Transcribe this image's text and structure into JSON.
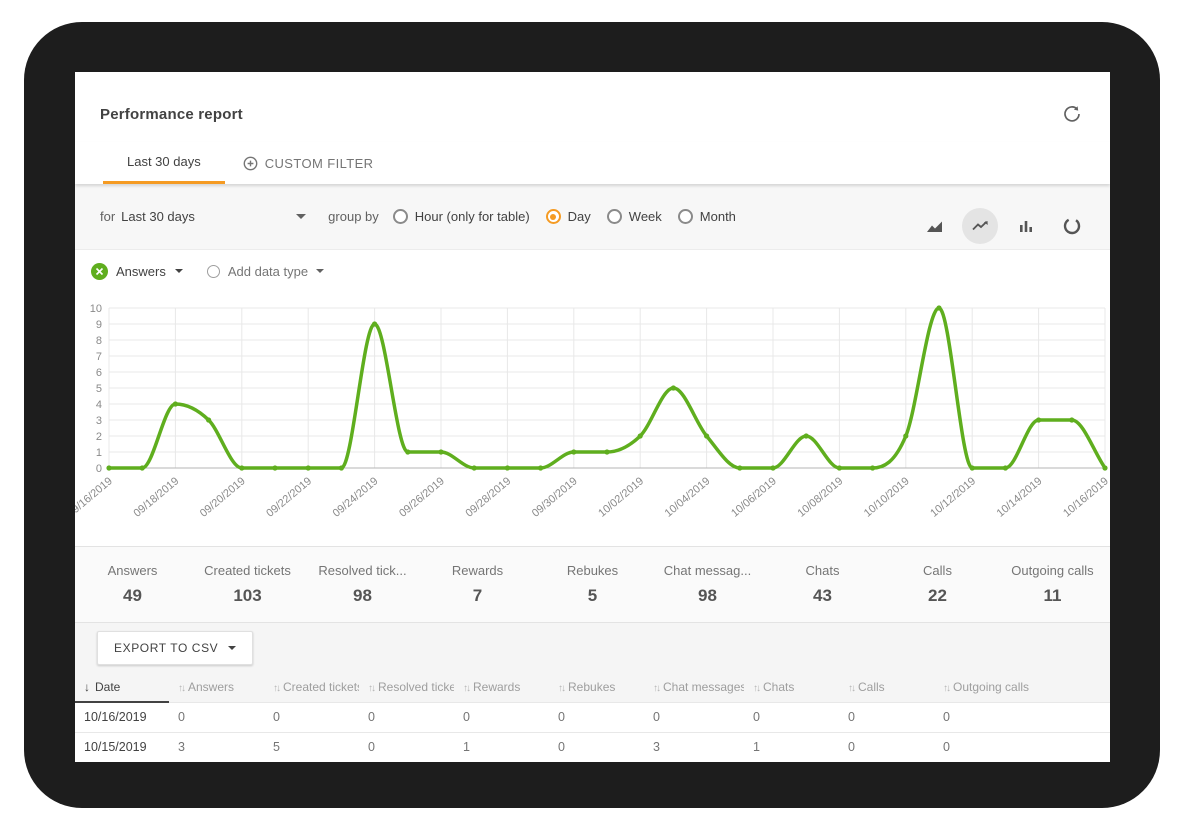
{
  "header": {
    "title": "Performance report"
  },
  "tabs": [
    {
      "label": "Last 30 days",
      "active": true
    },
    {
      "label": "CUSTOM FILTER",
      "active": false
    }
  ],
  "filter": {
    "for_label": "for",
    "range_value": "Last 30 days",
    "group_by_label": "group by",
    "group_options": [
      {
        "label": "Hour (only for table)",
        "selected": false
      },
      {
        "label": "Day",
        "selected": true
      },
      {
        "label": "Week",
        "selected": false
      },
      {
        "label": "Month",
        "selected": false
      }
    ],
    "chart_types": [
      "area-chart",
      "line-chart",
      "bar-chart",
      "donut-chart"
    ],
    "selected_chart_type": "line-chart"
  },
  "series_selector": {
    "series_label": "Answers",
    "add_label": "Add data type"
  },
  "chart_data": {
    "type": "line",
    "series_name": "Answers",
    "x": [
      "09/16/2019",
      "09/17/2019",
      "09/18/2019",
      "09/19/2019",
      "09/20/2019",
      "09/21/2019",
      "09/22/2019",
      "09/23/2019",
      "09/24/2019",
      "09/25/2019",
      "09/26/2019",
      "09/27/2019",
      "09/28/2019",
      "09/29/2019",
      "09/30/2019",
      "10/01/2019",
      "10/02/2019",
      "10/03/2019",
      "10/04/2019",
      "10/05/2019",
      "10/06/2019",
      "10/07/2019",
      "10/08/2019",
      "10/09/2019",
      "10/10/2019",
      "10/11/2019",
      "10/12/2019",
      "10/13/2019",
      "10/14/2019",
      "10/15/2019",
      "10/16/2019"
    ],
    "values": [
      0,
      0,
      4,
      3,
      0,
      0,
      0,
      0,
      9,
      1,
      1,
      0,
      0,
      0,
      1,
      1,
      2,
      5,
      2,
      0,
      0,
      2,
      0,
      0,
      2,
      10,
      0,
      0,
      3,
      3,
      0
    ],
    "x_tick_every": 2,
    "y_ticks": [
      0,
      1,
      2,
      3,
      4,
      5,
      6,
      7,
      8,
      9,
      10
    ],
    "ylim": [
      0,
      10
    ],
    "grid": true,
    "line_color": "#5fae1e",
    "marker": "dot"
  },
  "summary": [
    {
      "label": "Answers",
      "value": "49"
    },
    {
      "label": "Created tickets",
      "value": "103"
    },
    {
      "label": "Resolved tick...",
      "value": "98"
    },
    {
      "label": "Rewards",
      "value": "7"
    },
    {
      "label": "Rebukes",
      "value": "5"
    },
    {
      "label": "Chat messag...",
      "value": "98"
    },
    {
      "label": "Chats",
      "value": "43"
    },
    {
      "label": "Calls",
      "value": "22"
    },
    {
      "label": "Outgoing calls",
      "value": "11"
    }
  ],
  "export_button": "EXPORT TO CSV",
  "table": {
    "columns": [
      "Date",
      "Answers",
      "Created tickets",
      "Resolved tickets",
      "Rewards",
      "Rebukes",
      "Chat messages",
      "Chats",
      "Calls",
      "Outgoing calls"
    ],
    "sort_column": "Date",
    "sort_direction": "desc",
    "rows": [
      [
        "10/16/2019",
        "0",
        "0",
        "0",
        "0",
        "0",
        "0",
        "0",
        "0",
        "0"
      ],
      [
        "10/15/2019",
        "3",
        "5",
        "0",
        "1",
        "0",
        "3",
        "1",
        "0",
        "0"
      ]
    ]
  },
  "colors": {
    "accent_orange": "#f59b23",
    "line_green": "#5fae1e"
  }
}
